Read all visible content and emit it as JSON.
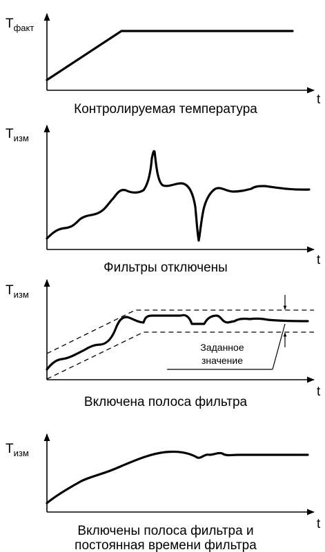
{
  "panels": [
    {
      "y_label_main": "T",
      "y_label_sub": "факт",
      "x_label": "t",
      "caption": [
        "Контролируемая температура"
      ]
    },
    {
      "y_label_main": "T",
      "y_label_sub": "изм",
      "x_label": "t",
      "caption": [
        "Фильтры отключены"
      ]
    },
    {
      "y_label_main": "T",
      "y_label_sub": "изм",
      "x_label": "t",
      "caption": [
        "Включена полоса фильтра"
      ],
      "annotation": [
        "Заданное",
        "значение"
      ]
    },
    {
      "y_label_main": "T",
      "y_label_sub": "изм",
      "x_label": "t",
      "caption": [
        "Включены полоса фильтра и",
        "постоянная времени фильтра"
      ]
    }
  ]
}
